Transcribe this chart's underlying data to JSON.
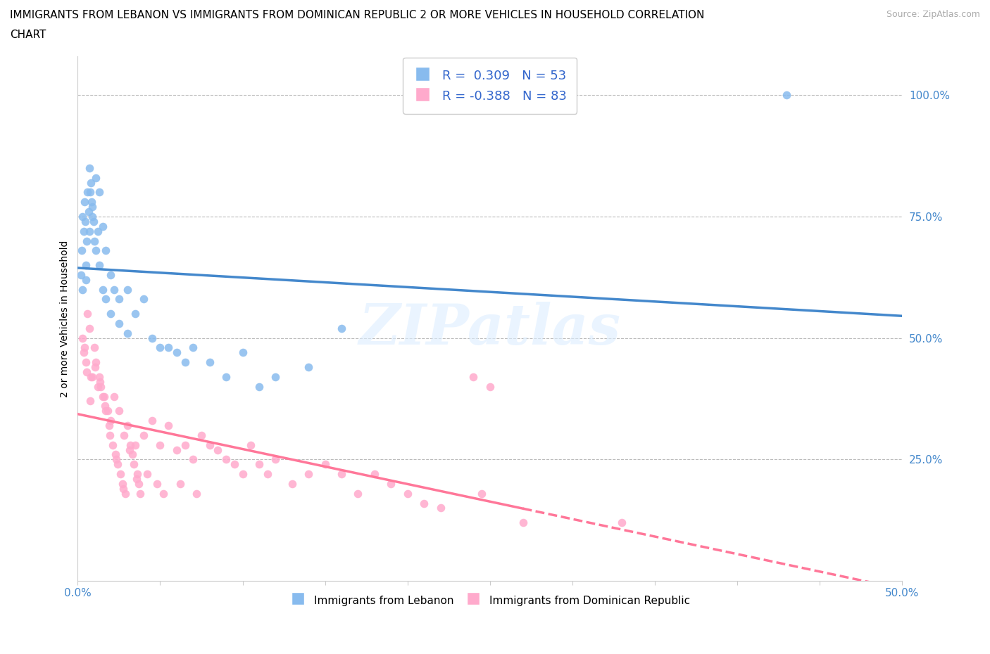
{
  "title_line1": "IMMIGRANTS FROM LEBANON VS IMMIGRANTS FROM DOMINICAN REPUBLIC 2 OR MORE VEHICLES IN HOUSEHOLD CORRELATION",
  "title_line2": "CHART",
  "source": "Source: ZipAtlas.com",
  "legend_blue_label": "Immigrants from Lebanon",
  "legend_pink_label": "Immigrants from Dominican Republic",
  "legend_blue_text": "R =  0.309   N = 53",
  "legend_pink_text": "R = -0.388   N = 83",
  "blue_color": "#88BBEE",
  "pink_color": "#FFAACC",
  "blue_line_color": "#4488CC",
  "pink_line_color": "#FF7799",
  "watermark": "ZIPatlas",
  "blue_x": [
    0.2,
    0.25,
    0.3,
    0.35,
    0.4,
    0.45,
    0.5,
    0.55,
    0.6,
    0.65,
    0.7,
    0.75,
    0.8,
    0.85,
    0.9,
    0.95,
    1.0,
    1.1,
    1.2,
    1.3,
    1.5,
    1.7,
    2.0,
    2.2,
    2.5,
    3.0,
    3.5,
    4.0,
    4.5,
    5.0,
    5.5,
    6.0,
    6.5,
    7.0,
    8.0,
    9.0,
    10.0,
    11.0,
    12.0,
    14.0,
    16.0,
    0.3,
    0.5,
    0.7,
    0.9,
    1.1,
    1.3,
    1.5,
    1.7,
    2.0,
    2.5,
    3.0,
    43.0
  ],
  "blue_y": [
    63,
    68,
    75,
    72,
    78,
    74,
    65,
    70,
    80,
    76,
    85,
    80,
    82,
    78,
    77,
    74,
    70,
    83,
    72,
    80,
    73,
    68,
    63,
    60,
    58,
    60,
    55,
    58,
    50,
    48,
    48,
    47,
    45,
    48,
    45,
    42,
    47,
    40,
    42,
    44,
    52,
    60,
    62,
    72,
    75,
    68,
    65,
    60,
    58,
    55,
    53,
    51,
    100
  ],
  "pink_x": [
    0.3,
    0.4,
    0.5,
    0.6,
    0.7,
    0.8,
    0.9,
    1.0,
    1.1,
    1.2,
    1.3,
    1.4,
    1.5,
    1.6,
    1.7,
    1.8,
    1.9,
    2.0,
    2.1,
    2.2,
    2.3,
    2.4,
    2.5,
    2.6,
    2.7,
    2.8,
    2.9,
    3.0,
    3.2,
    3.3,
    3.4,
    3.5,
    3.6,
    3.7,
    3.8,
    4.0,
    4.2,
    4.5,
    4.8,
    5.0,
    5.2,
    5.5,
    6.0,
    6.2,
    6.5,
    7.0,
    7.2,
    7.5,
    8.0,
    8.5,
    9.0,
    9.5,
    10.0,
    10.5,
    11.0,
    11.5,
    12.0,
    13.0,
    14.0,
    15.0,
    16.0,
    17.0,
    18.0,
    19.0,
    20.0,
    21.0,
    22.0,
    24.0,
    24.5,
    25.0,
    27.0,
    33.0,
    0.35,
    0.55,
    0.75,
    1.05,
    1.35,
    1.65,
    1.95,
    2.35,
    2.75,
    3.15,
    3.55
  ],
  "pink_y": [
    50,
    48,
    45,
    55,
    52,
    42,
    42,
    48,
    45,
    40,
    42,
    40,
    38,
    38,
    35,
    35,
    32,
    33,
    28,
    38,
    26,
    24,
    35,
    22,
    20,
    30,
    18,
    32,
    28,
    26,
    24,
    28,
    22,
    20,
    18,
    30,
    22,
    33,
    20,
    28,
    18,
    32,
    27,
    20,
    28,
    25,
    18,
    30,
    28,
    27,
    25,
    24,
    22,
    28,
    24,
    22,
    25,
    20,
    22,
    24,
    22,
    18,
    22,
    20,
    18,
    16,
    15,
    42,
    18,
    40,
    12,
    12,
    47,
    43,
    37,
    44,
    41,
    36,
    30,
    25,
    19,
    27,
    21
  ],
  "xlim": [
    0,
    50
  ],
  "ylim": [
    0,
    108
  ],
  "yticks": [
    25,
    50,
    75,
    100
  ],
  "ytick_labels": [
    "25.0%",
    "50.0%",
    "75.0%",
    "100.0%"
  ],
  "xtick_labels": [
    "0.0%",
    "50.0%"
  ],
  "pink_solid_end": 27,
  "pink_dashed_end": 50
}
